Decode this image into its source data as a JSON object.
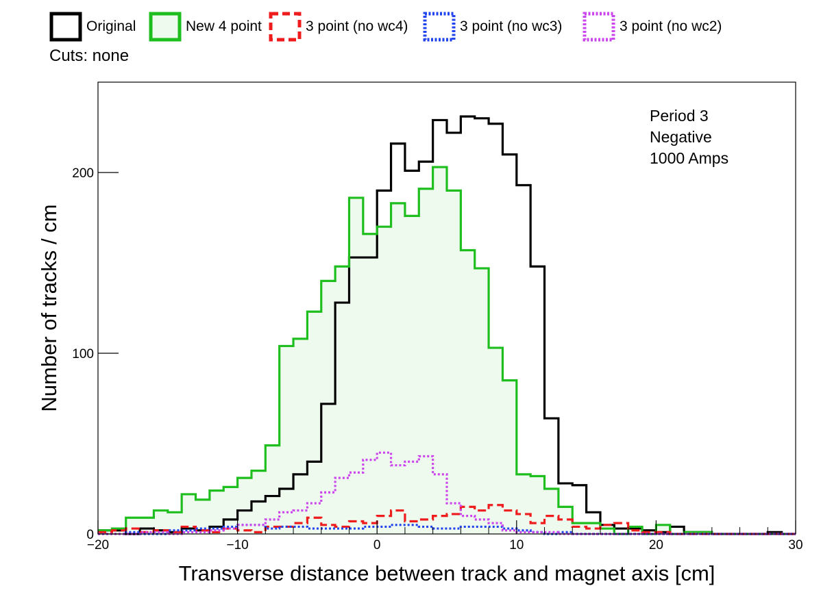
{
  "cuts_label": "Cuts: none",
  "chart_data": {
    "type": "histogram",
    "xlabel": "Transverse distance between track and magnet axis [cm]",
    "ylabel": "Number of tracks / cm",
    "xlim": [
      -20,
      30
    ],
    "ylim": [
      0,
      250
    ],
    "xticks": [
      -20,
      -10,
      0,
      10,
      20,
      30
    ],
    "yticks": [
      0,
      100,
      200
    ],
    "bin_width": 1,
    "annotation": [
      "Period 3",
      "Negative",
      "1000 Amps"
    ],
    "legend_placement": "top",
    "series": [
      {
        "name": "Original",
        "color": "#000000",
        "style": "solid",
        "fill": null,
        "bins_start": -20,
        "values": [
          2,
          2,
          0,
          3,
          2,
          1,
          3,
          2,
          4,
          8,
          13,
          18,
          21,
          25,
          33,
          40,
          72,
          128,
          153,
          153,
          190,
          216,
          201,
          206,
          229,
          222,
          231,
          230,
          227,
          210,
          193,
          148,
          64,
          28,
          27,
          12,
          5,
          3,
          3,
          2,
          1,
          4,
          1,
          1,
          0,
          0,
          0,
          0,
          1,
          0
        ]
      },
      {
        "name": "New 4 point",
        "color": "#1fbe1f",
        "style": "solid",
        "fill": "#effaef",
        "bins_start": -20,
        "values": [
          2,
          3,
          9,
          9,
          13,
          12,
          22,
          19,
          24,
          26,
          31,
          35,
          49,
          104,
          108,
          123,
          140,
          148,
          186,
          166,
          170,
          183,
          176,
          191,
          203,
          190,
          157,
          147,
          103,
          85,
          33,
          32,
          25,
          15,
          6,
          6,
          3,
          0,
          4,
          0,
          5,
          0,
          1,
          1,
          0,
          0,
          0,
          0,
          0,
          0
        ]
      },
      {
        "name": "3 point (no wc4)",
        "color": "#ee1c1c",
        "style": "dashed",
        "fill": null,
        "bins_start": -20,
        "values": [
          1,
          2,
          3,
          1,
          2,
          1,
          4,
          2,
          1,
          3,
          2,
          1,
          4,
          4,
          6,
          9,
          5,
          4,
          7,
          6,
          10,
          13,
          7,
          8,
          10,
          11,
          15,
          13,
          16,
          13,
          11,
          6,
          10,
          8,
          4,
          3,
          5,
          6,
          2,
          1,
          1,
          0,
          0,
          0,
          0,
          0,
          0,
          0,
          0,
          0
        ]
      },
      {
        "name": "3 point (no wc3)",
        "color": "#2244ee",
        "style": "dotted",
        "fill": null,
        "bins_start": -20,
        "values": [
          0,
          0,
          1,
          0,
          0,
          2,
          2,
          3,
          3,
          4,
          5,
          5,
          3,
          4,
          4,
          3,
          3,
          3,
          3,
          4,
          4,
          5,
          5,
          4,
          3,
          3,
          4,
          4,
          4,
          3,
          2,
          1,
          0,
          1,
          0,
          0,
          0,
          0,
          0,
          0,
          0,
          0,
          0,
          0,
          0,
          0,
          0,
          0,
          0,
          0
        ]
      },
      {
        "name": "3 point (no wc2)",
        "color": "#cc44ee",
        "style": "dotted",
        "fill": null,
        "bins_start": -20,
        "values": [
          0,
          0,
          0,
          1,
          1,
          0,
          1,
          1,
          2,
          3,
          5,
          5,
          8,
          12,
          13,
          17,
          23,
          31,
          34,
          41,
          45,
          38,
          40,
          43,
          33,
          17,
          10,
          8,
          6,
          2,
          1,
          1,
          1,
          0,
          0,
          0,
          0,
          0,
          0,
          0,
          0,
          0,
          0,
          0,
          0,
          0,
          0,
          0,
          0,
          0
        ]
      }
    ]
  }
}
